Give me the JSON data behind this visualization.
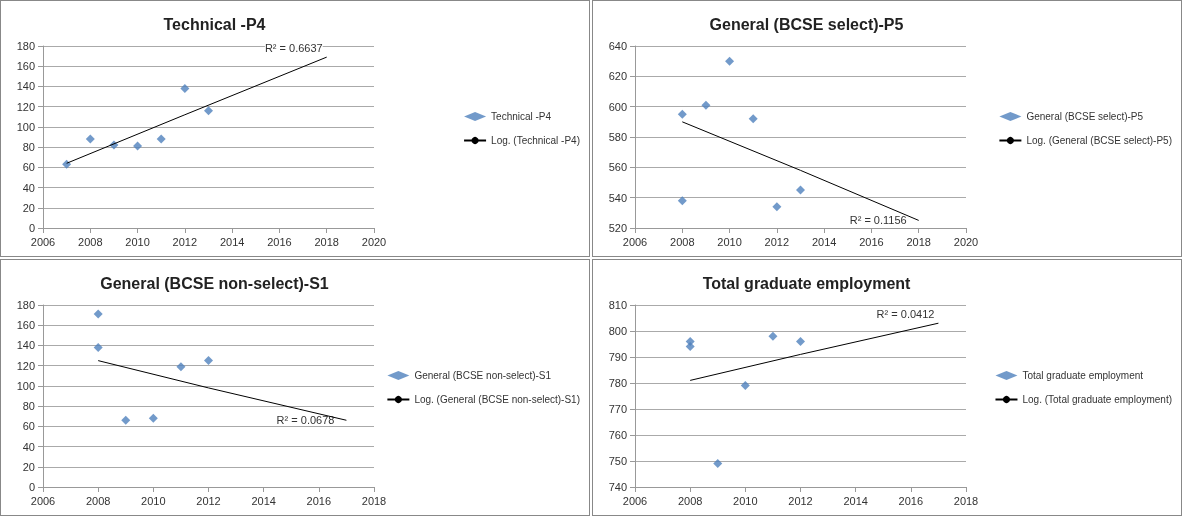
{
  "chart_data": [
    {
      "type": "scatter",
      "title": "Technical -P4",
      "legend": "right",
      "grid": "y",
      "marker": "diamond",
      "xlim": [
        2006,
        2020
      ],
      "xticks": [
        2006,
        2008,
        2010,
        2012,
        2014,
        2016,
        2018,
        2020
      ],
      "ylim": [
        0,
        180
      ],
      "yticks": [
        0,
        20,
        40,
        60,
        80,
        100,
        120,
        140,
        160,
        180
      ],
      "annotations": [
        "R² = 0.6637"
      ],
      "series": [
        {
          "name": "Technical -P4",
          "type": "scatter",
          "color": "#4f81bd",
          "x": [
            2007,
            2008,
            2009,
            2010,
            2011,
            2012,
            2013
          ],
          "values": [
            63,
            88,
            82,
            81,
            88,
            138,
            116
          ]
        },
        {
          "name": "Log. (Technical -P4)",
          "type": "line",
          "marker": "none",
          "color": "#000000",
          "x": [
            2007,
            2012,
            2018
          ],
          "values": [
            64,
            112,
            169
          ]
        }
      ]
    },
    {
      "type": "scatter",
      "title": "General (BCSE select)-P5",
      "legend": "right",
      "grid": "y",
      "marker": "diamond",
      "xlim": [
        2006,
        2020
      ],
      "xticks": [
        2006,
        2008,
        2010,
        2012,
        2014,
        2016,
        2018,
        2020
      ],
      "ylim": [
        520,
        640
      ],
      "yticks": [
        520,
        540,
        560,
        580,
        600,
        620,
        640
      ],
      "annotations": [
        "R² = 0.1156"
      ],
      "series": [
        {
          "name": "General (BCSE select)-P5",
          "type": "scatter",
          "color": "#4f81bd",
          "x": [
            2008,
            2008,
            2009,
            2010,
            2011,
            2012,
            2013
          ],
          "values": [
            595,
            538,
            601,
            630,
            592,
            534,
            545
          ]
        },
        {
          "name": "Log. (General (BCSE select)-P5)",
          "type": "line",
          "marker": "none",
          "color": "#000000",
          "x": [
            2008,
            2013,
            2018
          ],
          "values": [
            590,
            558,
            525
          ]
        }
      ]
    },
    {
      "type": "scatter",
      "title": "General (BCSE non-select)-S1",
      "legend": "right",
      "grid": "y",
      "marker": "diamond",
      "xlim": [
        2006,
        2018
      ],
      "xticks": [
        2006,
        2008,
        2010,
        2012,
        2014,
        2016,
        2018
      ],
      "ylim": [
        0,
        180
      ],
      "yticks": [
        0,
        20,
        40,
        60,
        80,
        100,
        120,
        140,
        160,
        180
      ],
      "annotations": [
        "R² = 0.0678"
      ],
      "series": [
        {
          "name": "General (BCSE non-select)-S1",
          "type": "scatter",
          "color": "#4f81bd",
          "x": [
            2008,
            2008,
            2009,
            2010,
            2011,
            2012
          ],
          "values": [
            171,
            138,
            66,
            68,
            119,
            125
          ]
        },
        {
          "name": "Log. (General (BCSE non-select)-S1)",
          "type": "line",
          "marker": "none",
          "color": "#000000",
          "x": [
            2008,
            2012,
            2017
          ],
          "values": [
            125,
            98,
            66
          ]
        }
      ]
    },
    {
      "type": "scatter",
      "title": "Total graduate employment",
      "legend": "right",
      "grid": "y",
      "marker": "diamond",
      "xlim": [
        2006,
        2018
      ],
      "xticks": [
        2006,
        2008,
        2010,
        2012,
        2014,
        2016,
        2018
      ],
      "ylim": [
        740,
        810
      ],
      "yticks": [
        740,
        750,
        760,
        770,
        780,
        790,
        800,
        810
      ],
      "annotations": [
        "R² = 0.0412"
      ],
      "series": [
        {
          "name": "Total graduate employment",
          "type": "scatter",
          "color": "#4f81bd",
          "x": [
            2008,
            2008,
            2009,
            2010,
            2011,
            2012
          ],
          "values": [
            796,
            794,
            749,
            779,
            798,
            796
          ]
        },
        {
          "name": "Log. (Total graduate employment)",
          "type": "line",
          "marker": "none",
          "color": "#000000",
          "x": [
            2008,
            2012,
            2017
          ],
          "values": [
            781,
            791,
            803
          ]
        }
      ]
    }
  ]
}
